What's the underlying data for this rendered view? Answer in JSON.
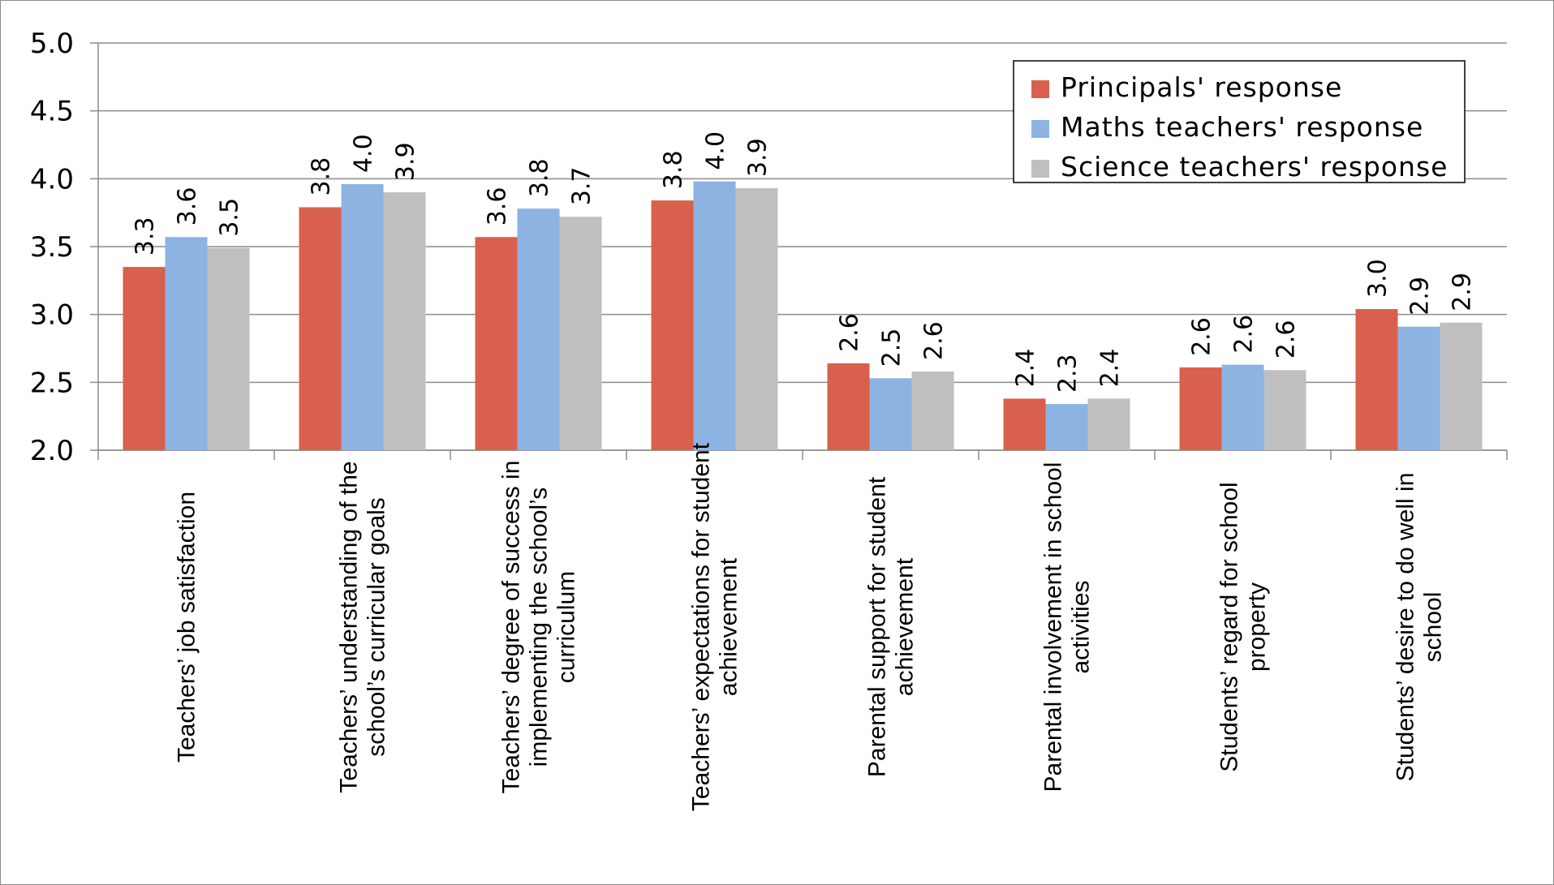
{
  "chart_data": {
    "type": "bar",
    "title": "",
    "xlabel": "",
    "ylabel": "",
    "ylim": [
      2.0,
      5.0
    ],
    "yticks": [
      "2.0",
      "2.5",
      "3.0",
      "3.5",
      "4.0",
      "4.5",
      "5.0"
    ],
    "grid": true,
    "legend_position": "top-right",
    "categories": [
      "Teachers’ job satisfaction",
      "Teachers’ understanding of the school’s curricular goals",
      "Teachers’ degree of success in implementing the school’s curriculum",
      "Teachers’ expectations for student achievement",
      "Parental support for student achievement",
      "Parental involvement in school activities",
      "Students’ regard for school property",
      "Students’ desire to do well in school"
    ],
    "category_label_lines": [
      [
        "Teachers’ job satisfaction"
      ],
      [
        "Teachers’ understanding of the",
        "school’s curricular goals"
      ],
      [
        "Teachers’ degree of success in",
        "implementing the school’s",
        "curriculum"
      ],
      [
        "Teachers’ expectations for student",
        "achievement"
      ],
      [
        "Parental support for student",
        "achievement"
      ],
      [
        "Parental involvement in school",
        "activities"
      ],
      [
        "Students’ regard for school",
        "property"
      ],
      [
        "Students’ desire to do well in",
        "school"
      ]
    ],
    "series": [
      {
        "name": "Principals' response",
        "color": "#d9604c",
        "values": [
          3.35,
          3.79,
          3.57,
          3.84,
          2.64,
          2.38,
          2.61,
          3.04
        ],
        "labels": [
          "3.3",
          "3.8",
          "3.6",
          "3.8",
          "2.6",
          "2.4",
          "2.6",
          "3.0"
        ]
      },
      {
        "name": "Maths teachers' response",
        "color": "#8db3e2",
        "values": [
          3.57,
          3.96,
          3.78,
          3.98,
          2.53,
          2.34,
          2.63,
          2.91
        ],
        "labels": [
          "3.6",
          "4.0",
          "3.8",
          "4.0",
          "2.5",
          "2.3",
          "2.6",
          "2.9"
        ]
      },
      {
        "name": "Science teachers' response",
        "color": "#bfbfbf",
        "values": [
          3.49,
          3.9,
          3.72,
          3.93,
          2.58,
          2.38,
          2.59,
          2.94
        ],
        "labels": [
          "3.5",
          "3.9",
          "3.7",
          "3.9",
          "2.6",
          "2.4",
          "2.6",
          "2.9"
        ]
      }
    ]
  }
}
